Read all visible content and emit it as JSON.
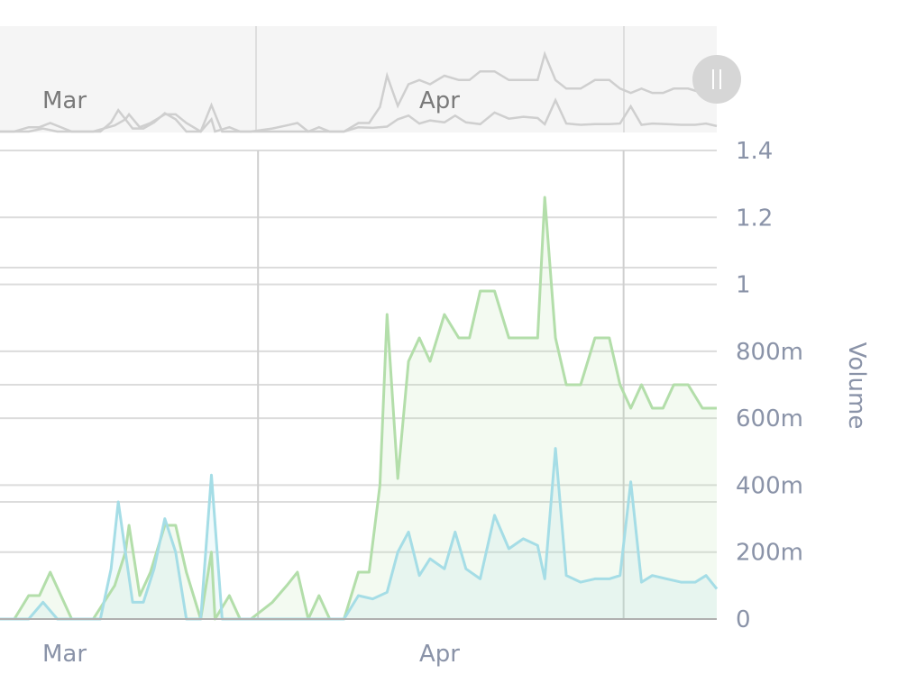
{
  "colors": {
    "series_1": "#b3deaa",
    "series_2": "#a5dde6",
    "grid": "#dcdcdc",
    "navigator_bg": "#f5f5f5",
    "navigator_line": "#cfcfcf",
    "handle": "#d6d6d6",
    "text": "#8a93a8"
  },
  "navigator": {
    "month_labels": [
      "Mar",
      "Apr"
    ],
    "handle_icon": "drag-handle-icon"
  },
  "chart_data": {
    "type": "area",
    "x_tick_labels": [
      "Mar",
      "Apr"
    ],
    "y_axis": {
      "title": "Volume",
      "tick_labels": [
        "0",
        "200m",
        "400m",
        "600m",
        "800m",
        "1",
        "1.2",
        "1.4"
      ],
      "ticks": [
        0,
        0.2,
        0.4,
        0.6,
        0.8,
        1.0,
        1.2,
        1.4
      ],
      "range": [
        0,
        1.4
      ],
      "position": "right"
    },
    "grid": true,
    "x_range": [
      0,
      100
    ],
    "series": [
      {
        "x": [
          0,
          2,
          4,
          5.5,
          7,
          10,
          13,
          14.5,
          16,
          17.5,
          18,
          19.5,
          21,
          23,
          24.5,
          26,
          28,
          29.5,
          30,
          32,
          33.5,
          35,
          38,
          40,
          41.5,
          43,
          44.5,
          46,
          48,
          50,
          51.5,
          53,
          54,
          55.5,
          57,
          58.5,
          60,
          62,
          64,
          65.5,
          67,
          69,
          71,
          73,
          75,
          76,
          77.5,
          79,
          81,
          83,
          85,
          86.5,
          88,
          89.5,
          91,
          92.5,
          94,
          96,
          98,
          100
        ],
        "values": [
          0,
          0,
          0.07,
          0.07,
          0.14,
          0,
          0,
          0.05,
          0.1,
          0.2,
          0.28,
          0.07,
          0.14,
          0.28,
          0.28,
          0.14,
          0,
          0.2,
          0,
          0.07,
          0,
          0,
          0.05,
          0.1,
          0.14,
          0,
          0.07,
          0,
          0,
          0.14,
          0.14,
          0.4,
          0.91,
          0.42,
          0.77,
          0.84,
          0.77,
          0.91,
          0.84,
          0.84,
          0.98,
          0.98,
          0.84,
          0.84,
          0.84,
          1.26,
          0.84,
          0.7,
          0.7,
          0.84,
          0.84,
          0.7,
          0.63,
          0.7,
          0.63,
          0.63,
          0.7,
          0.7,
          0.63,
          0.63
        ]
      },
      {
        "x": [
          0,
          2,
          4,
          6,
          8,
          10,
          12,
          14,
          15.5,
          16.5,
          17.5,
          18.5,
          20,
          21.5,
          23,
          24.5,
          26,
          28,
          29.5,
          31,
          32,
          34,
          36,
          38,
          40,
          42,
          44,
          46,
          48,
          50,
          52,
          54,
          55.5,
          57,
          58.5,
          60,
          62,
          63.5,
          65,
          67,
          69,
          71,
          73,
          75,
          76,
          77.5,
          79,
          81,
          83,
          85,
          86.5,
          88,
          89.5,
          91,
          93,
          95,
          97,
          98.5,
          100
        ],
        "values": [
          0,
          0,
          0,
          0.05,
          0,
          0,
          0,
          0,
          0.15,
          0.35,
          0.2,
          0.05,
          0.05,
          0.15,
          0.3,
          0.2,
          0,
          0,
          0.43,
          0,
          0,
          0,
          0,
          0,
          0,
          0,
          0,
          0,
          0,
          0.07,
          0.06,
          0.08,
          0.2,
          0.26,
          0.13,
          0.18,
          0.15,
          0.26,
          0.15,
          0.12,
          0.31,
          0.21,
          0.24,
          0.22,
          0.12,
          0.51,
          0.13,
          0.11,
          0.12,
          0.12,
          0.13,
          0.41,
          0.11,
          0.13,
          0.12,
          0.11,
          0.11,
          0.13,
          0.09
        ]
      }
    ]
  }
}
